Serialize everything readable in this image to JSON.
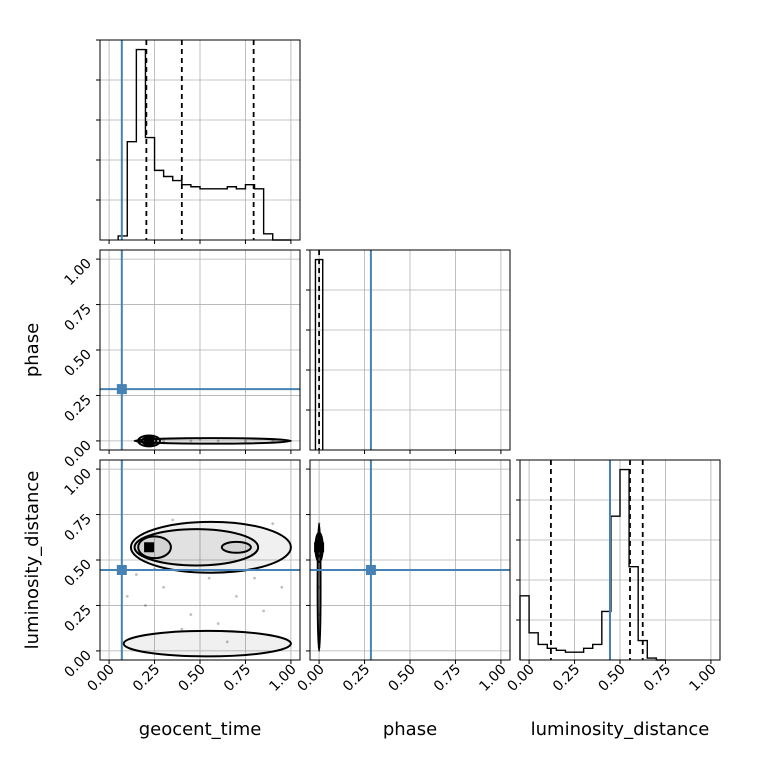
{
  "chart_data": {
    "type": "corner",
    "params": [
      "geocent_time",
      "phase",
      "luminosity_distance"
    ],
    "range": [
      -0.05,
      1.05
    ],
    "tick_values": [
      0.0,
      0.25,
      0.5,
      0.75,
      1.0
    ],
    "tick_labels": [
      "0.00",
      "0.25",
      "0.50",
      "0.75",
      "1.00"
    ],
    "truths": [
      0.07,
      0.285,
      0.445
    ],
    "truth_color": "#4682b4",
    "grid": true,
    "histograms": [
      {
        "param": "geocent_time",
        "bin_edges": [
          0.05,
          0.1,
          0.15,
          0.2,
          0.25,
          0.3,
          0.35,
          0.4,
          0.45,
          0.5,
          0.55,
          0.6,
          0.65,
          0.7,
          0.75,
          0.8,
          0.85,
          0.9,
          0.95,
          1.0
        ],
        "values": [
          0.02,
          0.48,
          0.93,
          0.5,
          0.34,
          0.31,
          0.29,
          0.27,
          0.26,
          0.25,
          0.25,
          0.25,
          0.26,
          0.25,
          0.27,
          0.25,
          0.03,
          0,
          0
        ],
        "quantiles": [
          0.205,
          0.4,
          0.795
        ]
      },
      {
        "param": "phase",
        "bin_edges": [
          -0.02,
          0.0,
          0.02
        ],
        "values": [
          1.0,
          1.0
        ],
        "quantiles": [
          0.0
        ]
      },
      {
        "param": "luminosity_distance",
        "bin_edges": [
          -0.05,
          0.0,
          0.05,
          0.1,
          0.15,
          0.2,
          0.25,
          0.3,
          0.35,
          0.4,
          0.45,
          0.5,
          0.55,
          0.6,
          0.65,
          0.7,
          0.75
        ],
        "values": [
          0.33,
          0.14,
          0.08,
          0.06,
          0.05,
          0.04,
          0.04,
          0.06,
          0.08,
          0.25,
          0.74,
          0.98,
          0.48,
          0.1,
          0.01,
          0.0
        ],
        "quantiles": [
          0.12,
          0.555,
          0.625
        ]
      }
    ],
    "scatter_panels": [
      {
        "x": "geocent_time",
        "y": "phase",
        "points": [
          [
            0.15,
            0.0
          ],
          [
            0.22,
            0.01
          ],
          [
            0.3,
            0.0
          ],
          [
            0.45,
            0.0
          ],
          [
            0.6,
            0.0
          ],
          [
            0.75,
            0.0
          ],
          [
            0.9,
            0.0
          ],
          [
            0.2,
            -0.01
          ],
          [
            0.5,
            0.01
          ]
        ],
        "contours": [
          {
            "x": 0.22,
            "y": 0.0,
            "rx": 0.06,
            "ry": 0.03
          },
          {
            "x": 0.22,
            "y": 0.0,
            "rx": 0.04,
            "ry": 0.02
          },
          {
            "x": 0.57,
            "y": 0.0,
            "rx": 0.43,
            "ry": 0.015
          }
        ],
        "peak": {
          "x": 0.22,
          "y": 0.0
        }
      },
      {
        "x": "geocent_time",
        "y": "luminosity_distance",
        "points": [
          [
            0.1,
            0.3
          ],
          [
            0.2,
            0.25
          ],
          [
            0.3,
            0.35
          ],
          [
            0.45,
            0.2
          ],
          [
            0.55,
            0.4
          ],
          [
            0.7,
            0.3
          ],
          [
            0.85,
            0.22
          ],
          [
            0.95,
            0.35
          ],
          [
            0.15,
            0.42
          ],
          [
            0.4,
            0.12
          ],
          [
            0.6,
            0.15
          ],
          [
            0.8,
            0.4
          ],
          [
            0.25,
            0.45
          ],
          [
            0.65,
            0.05
          ],
          [
            0.35,
            0.72
          ],
          [
            0.9,
            0.7
          ]
        ],
        "contours": [
          {
            "x": 0.56,
            "y": 0.57,
            "rx": 0.44,
            "ry": 0.14
          },
          {
            "x": 0.48,
            "y": 0.57,
            "rx": 0.34,
            "ry": 0.1
          },
          {
            "x": 0.25,
            "y": 0.57,
            "rx": 0.09,
            "ry": 0.06
          },
          {
            "x": 0.7,
            "y": 0.57,
            "rx": 0.08,
            "ry": 0.03
          },
          {
            "x": 0.54,
            "y": 0.04,
            "rx": 0.46,
            "ry": 0.07
          }
        ],
        "peak": {
          "x": 0.22,
          "y": 0.57
        }
      },
      {
        "x": "phase",
        "y": "luminosity_distance",
        "points": [
          [
            0.0,
            0.6
          ],
          [
            0.0,
            0.55
          ],
          [
            0.0,
            0.7
          ],
          [
            0.0,
            0.45
          ],
          [
            0.0,
            0.2
          ],
          [
            0.0,
            0.02
          ],
          [
            0.0,
            0.35
          ]
        ],
        "contours": [
          {
            "x": 0.0,
            "y": 0.57,
            "rx": 0.02,
            "ry": 0.08
          },
          {
            "x": 0.0,
            "y": 0.57,
            "rx": 0.012,
            "ry": 0.05
          },
          {
            "x": 0.0,
            "y": 0.35,
            "rx": 0.008,
            "ry": 0.35
          }
        ],
        "peak": {
          "x": 0.0,
          "y": 0.57
        }
      }
    ]
  }
}
